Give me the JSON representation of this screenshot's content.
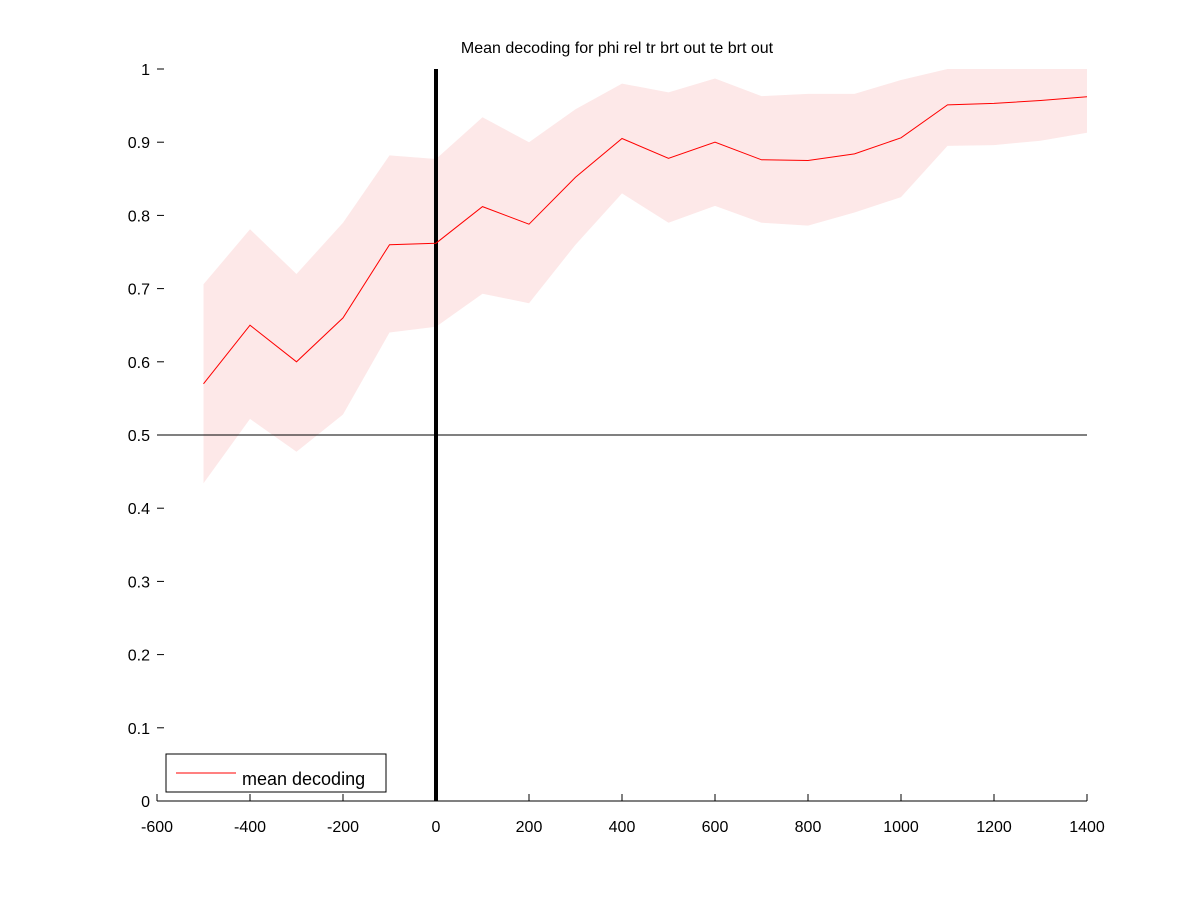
{
  "chart_data": {
    "type": "line",
    "title": "Mean decoding for phi rel tr brt out te brt out",
    "xlabel": "",
    "ylabel": "",
    "xlim": [
      -600,
      1400
    ],
    "ylim": [
      0,
      1
    ],
    "xticks": [
      -600,
      -400,
      -200,
      0,
      200,
      400,
      600,
      800,
      1000,
      1200,
      1400
    ],
    "yticks": [
      0,
      0.1,
      0.2,
      0.3,
      0.4,
      0.5,
      0.6,
      0.7,
      0.8,
      0.9,
      1
    ],
    "ytick_labels": [
      "0",
      "0.1",
      "0.2",
      "0.3",
      "0.4",
      "0.5",
      "0.6",
      "0.7",
      "0.8",
      "0.9",
      "1"
    ],
    "grid": false,
    "legend": {
      "position": "bottom-left",
      "entries": [
        "mean decoding"
      ]
    },
    "reference_lines": {
      "horizontal_y": 0.5,
      "vertical_x": 0
    },
    "series": [
      {
        "name": "mean decoding",
        "color": "#ff0000",
        "band_color": "#fde8e8",
        "x": [
          -500,
          -400,
          -300,
          -200,
          -100,
          0,
          100,
          200,
          300,
          400,
          500,
          600,
          700,
          800,
          900,
          1000,
          1100,
          1200,
          1300,
          1400
        ],
        "values": [
          0.57,
          0.65,
          0.6,
          0.66,
          0.76,
          0.762,
          0.812,
          0.788,
          0.852,
          0.905,
          0.878,
          0.9,
          0.876,
          0.875,
          0.884,
          0.906,
          0.951,
          0.953,
          0.957,
          0.962
        ],
        "upper": [
          0.706,
          0.781,
          0.72,
          0.79,
          0.882,
          0.877,
          0.934,
          0.9,
          0.945,
          0.98,
          0.968,
          0.987,
          0.963,
          0.966,
          0.966,
          0.985,
          1.0,
          1.0,
          1.0,
          1.0
        ],
        "lower": [
          0.434,
          0.522,
          0.477,
          0.528,
          0.64,
          0.648,
          0.693,
          0.68,
          0.76,
          0.83,
          0.79,
          0.813,
          0.79,
          0.786,
          0.804,
          0.825,
          0.895,
          0.896,
          0.902,
          0.913
        ]
      }
    ]
  }
}
